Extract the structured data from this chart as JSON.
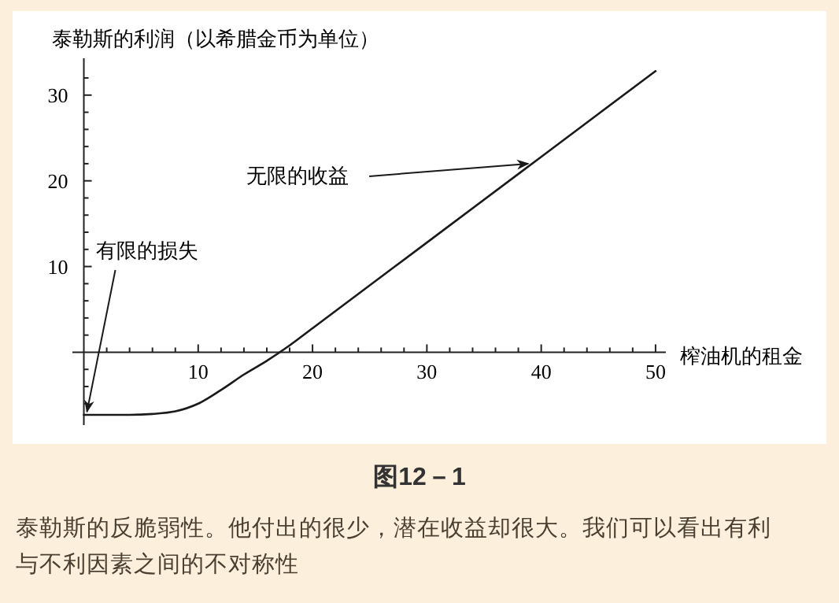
{
  "chart_data": {
    "type": "line",
    "title": "图12－1",
    "ylabel": "泰勒斯的利润（以希腊金币为单位）",
    "xlabel": "榨油机的租金",
    "x": [
      0,
      4,
      6,
      8,
      10,
      12,
      14,
      16,
      18,
      20,
      30,
      40,
      50
    ],
    "series": [
      {
        "color": "#1a1a1a",
        "values": [
          -7.3,
          -7.3,
          -7.2,
          -6.9,
          -6.0,
          -4.4,
          -2.6,
          -1.0,
          0.8,
          2.8,
          12.8,
          22.8,
          32.8
        ]
      }
    ],
    "xlim": [
      -1,
      50.9
    ],
    "ylim": [
      -8.5,
      34.3
    ],
    "xticks": [
      {
        "value": 2,
        "label": null
      },
      {
        "value": 4,
        "label": null
      },
      {
        "value": 6,
        "label": null
      },
      {
        "value": 8,
        "label": null
      },
      10,
      {
        "value": 12,
        "label": null
      },
      {
        "value": 14,
        "label": null
      },
      {
        "value": 16,
        "label": null
      },
      {
        "value": 18,
        "label": null
      },
      20,
      {
        "value": 22,
        "label": null
      },
      {
        "value": 24,
        "label": null
      },
      {
        "value": 26,
        "label": null
      },
      {
        "value": 28,
        "label": null
      },
      30,
      {
        "value": 32,
        "label": null
      },
      {
        "value": 34,
        "label": null
      },
      {
        "value": 36,
        "label": null
      },
      {
        "value": 38,
        "label": null
      },
      40,
      {
        "value": 42,
        "label": null
      },
      {
        "value": 44,
        "label": null
      },
      {
        "value": 46,
        "label": null
      },
      {
        "value": 48,
        "label": null
      },
      50
    ],
    "yticks": [
      {
        "value": -6,
        "label": null
      },
      {
        "value": -4,
        "label": null
      },
      {
        "value": -2,
        "label": null
      },
      {
        "value": 2,
        "label": null
      },
      {
        "value": 4,
        "label": null
      },
      {
        "value": 6,
        "label": null
      },
      {
        "value": 8,
        "label": null
      },
      10,
      {
        "value": 12,
        "label": null
      },
      {
        "value": 14,
        "label": null
      },
      {
        "value": 16,
        "label": null
      },
      {
        "value": 18,
        "label": null
      },
      20,
      {
        "value": 22,
        "label": null
      },
      {
        "value": 24,
        "label": null
      },
      {
        "value": 26,
        "label": null
      },
      {
        "value": 28,
        "label": null
      },
      30,
      {
        "value": 32,
        "label": null
      }
    ],
    "grid": false,
    "marker": "none",
    "line_style": "solid",
    "annotations": [
      {
        "text": "有限的损失",
        "x": 0,
        "y": -7.3
      },
      {
        "text": "无限的收益",
        "x": 39,
        "y": 22
      },
      "泰勒斯的反脆弱性。他付出的很少，潜在收益却很大。我们可以看出有利与不利因素之间的不对称性"
    ]
  }
}
